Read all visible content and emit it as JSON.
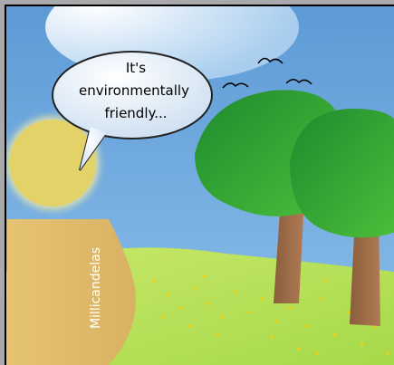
{
  "speech_bubble": {
    "lines": [
      "It's",
      "environmentally",
      "friendly..."
    ]
  },
  "side_label": "Millicandelas"
}
